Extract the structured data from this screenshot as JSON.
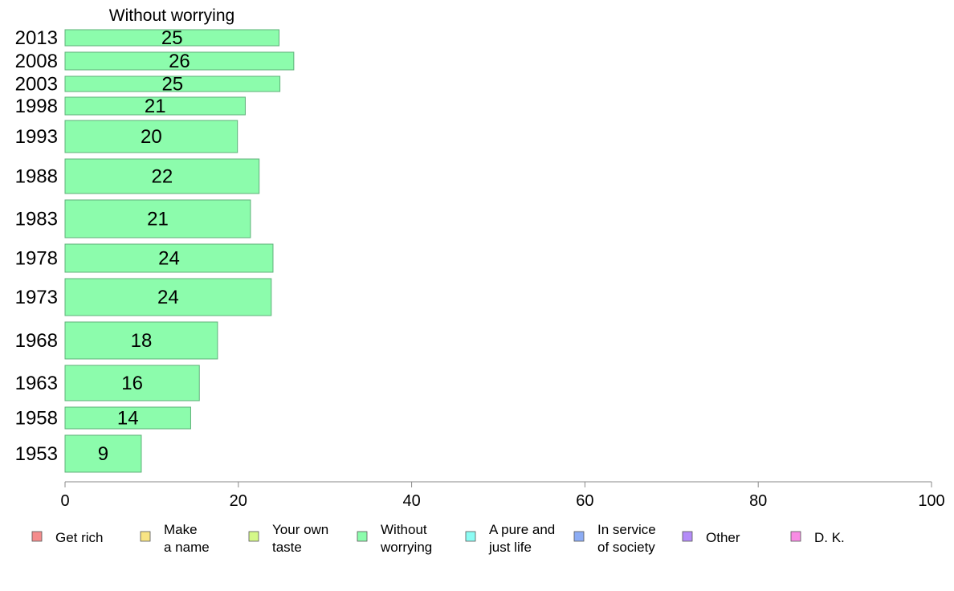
{
  "chart_data": {
    "type": "bar",
    "orientation": "horizontal",
    "title": "Without worrying",
    "categories": [
      "2013",
      "2008",
      "2003",
      "1998",
      "1993",
      "1988",
      "1983",
      "1978",
      "1973",
      "1968",
      "1963",
      "1958",
      "1953"
    ],
    "values": [
      25,
      26,
      25,
      21,
      20,
      22,
      21,
      24,
      24,
      18,
      16,
      14,
      9
    ],
    "bar_extent": [
      24.7,
      26.4,
      24.8,
      20.8,
      19.9,
      22.4,
      21.4,
      24.0,
      23.8,
      17.6,
      15.5,
      14.5,
      8.8
    ],
    "xlim": [
      0,
      100
    ],
    "xticks": [
      0,
      20,
      40,
      60,
      80,
      100
    ],
    "xlabel": "",
    "ylabel": "",
    "grid": false,
    "bar_color": "#8cfcac",
    "bar_stroke": "#5fb07a",
    "legend_position": "bottom",
    "legend": [
      {
        "name": "Get rich",
        "color": "#f48c8c"
      },
      {
        "name": "Make\na name",
        "color": "#f8e484"
      },
      {
        "name": "Your own\ntaste",
        "color": "#d4f888"
      },
      {
        "name": "Without\nworrying",
        "color": "#8cfcac"
      },
      {
        "name": "A pure and\njust life",
        "color": "#8cfcf4"
      },
      {
        "name": "In service\nof society",
        "color": "#8cacf4"
      },
      {
        "name": "Other",
        "color": "#b48cf8"
      },
      {
        "name": "D. K.",
        "color": "#f88ce4"
      }
    ]
  }
}
